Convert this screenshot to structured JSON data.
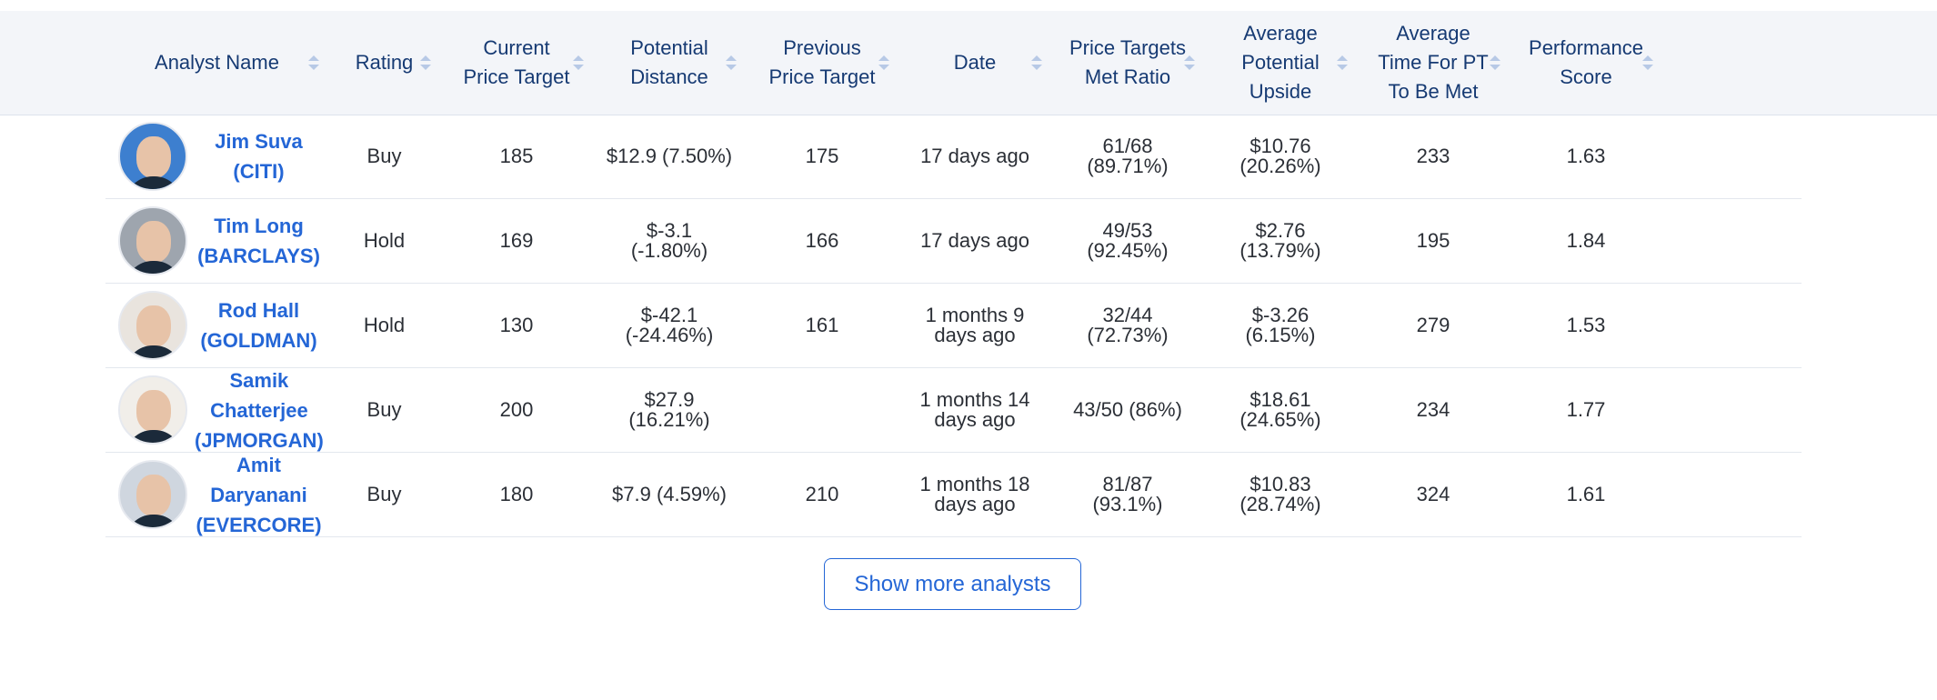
{
  "headers": [
    "Analyst Name",
    "Rating",
    "Current Price Target",
    "Potential Distance",
    "Previous Price Target",
    "Date",
    "Price Targets Met Ratio",
    "Average Potential Upside",
    "Average Time For PT To Be Met",
    "Performance Score"
  ],
  "rows": [
    {
      "name": "Jim Suva (CITI)",
      "rating": "Buy",
      "current_pt": "185",
      "distance": "$12.9 (7.50%)",
      "previous_pt": "175",
      "date": "17 days ago",
      "met_ratio": "61/68\n(89.71%)",
      "avg_upside": "$10.76\n(20.26%)",
      "avg_time": "233",
      "score": "1.63"
    },
    {
      "name": "Tim Long\n(BARCLAYS)",
      "rating": "Hold",
      "current_pt": "169",
      "distance": "$-3.1\n(-1.80%)",
      "previous_pt": "166",
      "date": "17 days ago",
      "met_ratio": "49/53\n(92.45%)",
      "avg_upside": "$2.76\n(13.79%)",
      "avg_time": "195",
      "score": "1.84"
    },
    {
      "name": "Rod Hall\n(GOLDMAN)",
      "rating": "Hold",
      "current_pt": "130",
      "distance": "$-42.1\n(-24.46%)",
      "previous_pt": "161",
      "date": "1 months 9\ndays ago",
      "met_ratio": "32/44\n(72.73%)",
      "avg_upside": "$-3.26\n(6.15%)",
      "avg_time": "279",
      "score": "1.53"
    },
    {
      "name": "Samik Chatterjee\n(JPMORGAN)",
      "rating": "Buy",
      "current_pt": "200",
      "distance": "$27.9\n(16.21%)",
      "previous_pt": "",
      "date": "1 months 14\ndays ago",
      "met_ratio": "43/50 (86%)",
      "avg_upside": "$18.61\n(24.65%)",
      "avg_time": "234",
      "score": "1.77"
    },
    {
      "name": "Amit Daryanani\n(EVERCORE)",
      "rating": "Buy",
      "current_pt": "180",
      "distance": "$7.9 (4.59%)",
      "previous_pt": "210",
      "date": "1 months 18\ndays ago",
      "met_ratio": "81/87\n(93.1%)",
      "avg_upside": "$10.83\n(28.74%)",
      "avg_time": "324",
      "score": "1.61"
    }
  ],
  "show_more_label": "Show more analysts",
  "colors": {
    "link": "#2466d6",
    "header_bg": "#f3f5f9",
    "header_text": "#163a73"
  }
}
